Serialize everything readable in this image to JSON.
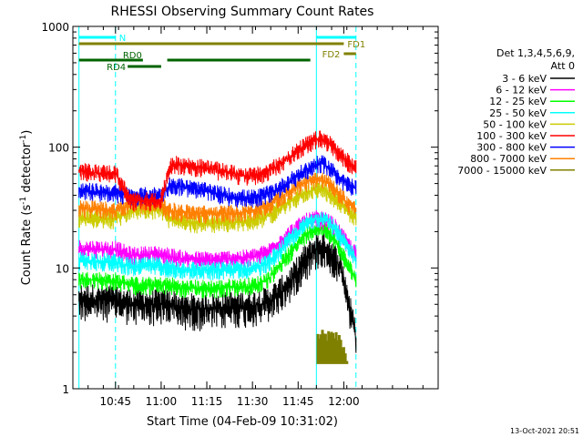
{
  "chart_data": {
    "type": "line",
    "title": "RHESSI Observing Summary Count Rates",
    "xlabel": "Start Time (04-Feb-09 10:31:02)",
    "ylabel": "Count Rate (s",
    "ylabel_sup1": "-1",
    "ylabel_mid": " detector",
    "ylabel_sup2": "-1",
    "ylabel_end": ")",
    "yscale": "log",
    "ylim": [
      1,
      1000
    ],
    "xlim_minutes": [
      631,
      751
    ],
    "x_ticks": [
      {
        "label": "10:45",
        "minute": 645
      },
      {
        "label": "11:00",
        "minute": 660
      },
      {
        "label": "11:15",
        "minute": 675
      },
      {
        "label": "11:30",
        "minute": 690
      },
      {
        "label": "11:45",
        "minute": 705
      },
      {
        "label": "12:00",
        "minute": 720
      }
    ],
    "y_ticks": [
      {
        "label": "1",
        "value": 1
      },
      {
        "label": "10",
        "value": 10
      },
      {
        "label": "100",
        "value": 100
      },
      {
        "label": "1000",
        "value": 1000
      }
    ],
    "legend_header": [
      "Det 1,3,4,5,6,9,",
      "Att 0"
    ],
    "legend_position": "right",
    "series": [
      {
        "name": "3 - 6 keV",
        "color": "#000000",
        "values": [
          5.5,
          5.5,
          5.4,
          5.4,
          5.0,
          5.0,
          5.0,
          5.0,
          5.0,
          4.6,
          4.6,
          4.6,
          4.6,
          4.8,
          4.8,
          4.9,
          5.2,
          6.2,
          8.0,
          11.5,
          14.5,
          15.0,
          14.0,
          12.0,
          10.0,
          6.0,
          2.6
        ]
      },
      {
        "name": "6 - 12 keV",
        "color": "#ff00ff",
        "values": [
          14.5,
          14.5,
          14.3,
          14.3,
          12.8,
          12.8,
          13.0,
          13.0,
          12.5,
          12.0,
          11.7,
          11.7,
          11.7,
          12.0,
          12.0,
          12.5,
          13.5,
          16.5,
          20.0,
          24.0,
          25.5,
          25.0,
          24.0,
          22.0,
          19.0,
          16.0,
          13.0
        ]
      },
      {
        "name": "12 - 25 keV",
        "color": "#00ff00",
        "values": [
          8.0,
          8.0,
          7.9,
          7.8,
          7.3,
          7.2,
          7.2,
          7.2,
          7.2,
          6.8,
          6.8,
          6.8,
          6.8,
          7.0,
          7.0,
          7.2,
          8.0,
          10.5,
          14.0,
          18.5,
          22.0,
          21.5,
          20.0,
          17.0,
          14.0,
          11.0,
          8.0
        ]
      },
      {
        "name": "25 - 50 keV",
        "color": "#00ffff",
        "values": [
          11.5,
          11.5,
          11.3,
          11.2,
          10.3,
          10.3,
          10.5,
          10.5,
          10.0,
          9.8,
          9.6,
          9.6,
          9.6,
          9.8,
          9.8,
          10.0,
          11.0,
          14.0,
          18.0,
          22.5,
          26.0,
          26.0,
          24.0,
          21.0,
          18.0,
          15.0,
          12.0
        ]
      },
      {
        "name": "50 - 100 keV",
        "color": "#cccc00",
        "values": [
          26.0,
          26.0,
          25.5,
          25.0,
          30.0,
          30.5,
          30.5,
          30.0,
          25.0,
          24.0,
          23.5,
          23.5,
          23.5,
          24.0,
          24.0,
          25.0,
          27.0,
          31.0,
          36.0,
          42.0,
          45.0,
          45.0,
          42.0,
          38.0,
          34.0,
          30.0,
          26.0
        ]
      },
      {
        "name": "100 - 300 keV",
        "color": "#ff0000",
        "values": [
          63.0,
          62.0,
          61.0,
          61.0,
          36.0,
          36.0,
          36.0,
          36.0,
          73.0,
          71.0,
          69.0,
          67.0,
          64.0,
          61.0,
          58.0,
          58.0,
          63.0,
          72.0,
          86.0,
          102.0,
          116.0,
          117.0,
          110.0,
          98.0,
          87.0,
          77.0,
          67.0
        ]
      },
      {
        "name": "300 - 800 keV",
        "color": "#0000ff",
        "values": [
          43.0,
          43.0,
          42.5,
          42.0,
          39.0,
          39.0,
          40.0,
          40.0,
          49.0,
          47.0,
          45.0,
          43.0,
          41.0,
          39.0,
          38.0,
          38.0,
          41.0,
          46.0,
          54.0,
          63.0,
          72.0,
          73.0,
          68.0,
          61.0,
          55.0,
          50.0,
          45.0
        ]
      },
      {
        "name": "800 - 7000 keV",
        "color": "#ff8000",
        "values": [
          31.0,
          31.0,
          30.5,
          30.0,
          33.0,
          33.5,
          33.5,
          33.0,
          30.0,
          29.0,
          28.5,
          28.0,
          28.0,
          28.5,
          29.0,
          30.0,
          33.0,
          38.0,
          45.0,
          51.0,
          55.0,
          54.0,
          50.0,
          45.0,
          40.0,
          35.0,
          30.0
        ]
      },
      {
        "name": "7000 - 15000 keV",
        "color": "#808000",
        "values": [
          null,
          null,
          null,
          null,
          null,
          null,
          null,
          null,
          null,
          null,
          null,
          null,
          null,
          null,
          null,
          null,
          null,
          null,
          null,
          null,
          2.8,
          2.8,
          2.8,
          2.8,
          2.8,
          1.6,
          null
        ]
      }
    ],
    "x_sample_minutes": [
      633,
      637,
      641,
      645,
      650,
      652,
      656,
      660,
      663,
      667,
      671,
      675,
      679,
      683,
      687,
      691,
      695,
      699,
      703,
      707,
      711,
      713,
      715,
      717,
      719,
      721,
      724
    ],
    "bars": [
      {
        "name": "N",
        "color": "#00ffff",
        "text_color": "#00ffff",
        "label_side": "end",
        "segments": [
          [
            633,
            645
          ]
        ],
        "level": "row1"
      },
      {
        "name": "FD1",
        "color": "#808000",
        "text_color": "#808000",
        "label_side": "end",
        "segments": [
          [
            633,
            720
          ]
        ],
        "level": "row2"
      },
      {
        "name": "N",
        "color": "#00ffff",
        "text_color": "#00ffff",
        "label_side": "none",
        "segments": [
          [
            711,
            724
          ]
        ],
        "level": "row1"
      },
      {
        "name": "FD2",
        "color": "#808000",
        "text_color": "#808000",
        "label_side": "before",
        "segments": [
          [
            720,
            724
          ]
        ],
        "level": "row3"
      },
      {
        "name": "RD0",
        "color": "#006400",
        "text_color": "#006400",
        "label_side": "above",
        "segments": [
          [
            633,
            654
          ],
          [
            662,
            709
          ]
        ],
        "level": "row4"
      },
      {
        "name": "RD4",
        "color": "#006400",
        "text_color": "#006400",
        "label_side": "left",
        "segments": [
          [
            649,
            660
          ]
        ],
        "level": "row5"
      }
    ],
    "vlines": [
      {
        "minute": 633,
        "color": "#00ffff",
        "style": "solid"
      },
      {
        "minute": 645,
        "color": "#00ffff",
        "style": "dashed"
      },
      {
        "minute": 711,
        "color": "#00ffff",
        "style": "solid"
      },
      {
        "minute": 724,
        "color": "#00ffff",
        "style": "dashed"
      }
    ],
    "footer": "13-Oct-2021 20:51"
  }
}
